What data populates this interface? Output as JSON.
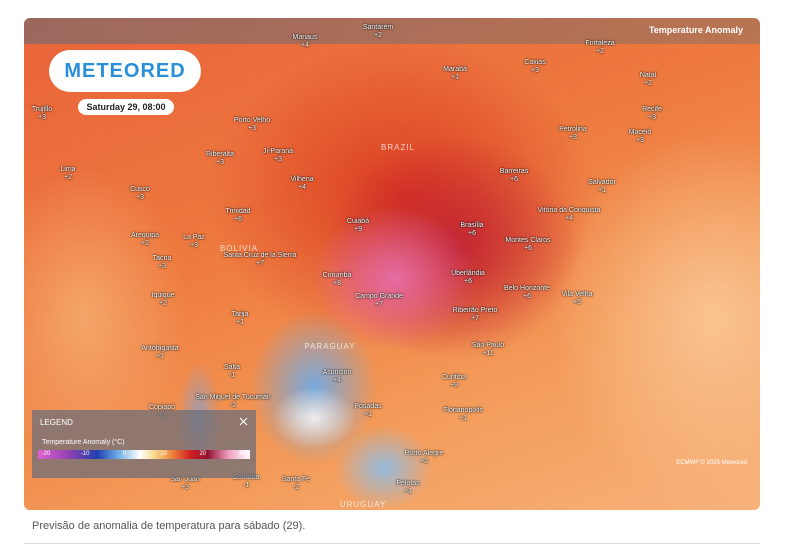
{
  "header": {
    "title": "Temperature Anomaly"
  },
  "logo": "METEORED",
  "date": "Saturday 29, 08:00",
  "countries": [
    "BRAZIL",
    "BOLIVIA",
    "PARAGUAY",
    "URUGUAY"
  ],
  "cities": [
    {
      "name": "Manaus",
      "anomaly": "+4"
    },
    {
      "name": "Santarém",
      "anomaly": "+2"
    },
    {
      "name": "Fortaleza",
      "anomaly": "+2"
    },
    {
      "name": "Marabá",
      "anomaly": "+1"
    },
    {
      "name": "Caxias",
      "anomaly": "+3"
    },
    {
      "name": "Natal",
      "anomaly": "+2"
    },
    {
      "name": "Recife",
      "anomaly": "+3"
    },
    {
      "name": "Maceió",
      "anomaly": "+3"
    },
    {
      "name": "Trujillo",
      "anomaly": "+3"
    },
    {
      "name": "Porto Velho",
      "anomaly": "+3"
    },
    {
      "name": "Riberalta",
      "anomaly": "+3"
    },
    {
      "name": "Ji-Paraná",
      "anomaly": "+3"
    },
    {
      "name": "Petrolina",
      "anomaly": "+3"
    },
    {
      "name": "Lima",
      "anomaly": "+2"
    },
    {
      "name": "Vilhena",
      "anomaly": "+4"
    },
    {
      "name": "Barreiras",
      "anomaly": "+6"
    },
    {
      "name": "Salvador",
      "anomaly": "+1"
    },
    {
      "name": "Cusco",
      "anomaly": "+3"
    },
    {
      "name": "Trinidad",
      "anomaly": "+6"
    },
    {
      "name": "Cuiabá",
      "anomaly": "+9"
    },
    {
      "name": "Brasília",
      "anomaly": "+6"
    },
    {
      "name": "Vitória da Conquista",
      "anomaly": "+4"
    },
    {
      "name": "Arequipa",
      "anomaly": "+2"
    },
    {
      "name": "La Paz",
      "anomaly": "+3"
    },
    {
      "name": "Montes Claros",
      "anomaly": "+6"
    },
    {
      "name": "Tacna",
      "anomaly": "+3"
    },
    {
      "name": "Santa Cruz de la Sierra",
      "anomaly": "+7"
    },
    {
      "name": "Corumbá",
      "anomaly": "+8"
    },
    {
      "name": "Uberlândia",
      "anomaly": "+6"
    },
    {
      "name": "Belo Horizonte",
      "anomaly": "+6"
    },
    {
      "name": "Iquique",
      "anomaly": "+2"
    },
    {
      "name": "Campo Grande",
      "anomaly": "+7"
    },
    {
      "name": "Vila Velha",
      "anomaly": "+5"
    },
    {
      "name": "Tarija",
      "anomaly": "+1"
    },
    {
      "name": "Ribeirão Preto",
      "anomaly": "+7"
    },
    {
      "name": "Antofagasta",
      "anomaly": "+1"
    },
    {
      "name": "São Paulo",
      "anomaly": "+11"
    },
    {
      "name": "Salta",
      "anomaly": "-1"
    },
    {
      "name": "Asunción",
      "anomaly": "+4"
    },
    {
      "name": "Curitiba",
      "anomaly": "+9"
    },
    {
      "name": "San Miguel de Tucumán",
      "anomaly": "-2"
    },
    {
      "name": "Copiapó",
      "anomaly": "+1"
    },
    {
      "name": "Posadas",
      "anomaly": "+1"
    },
    {
      "name": "Florianópolis",
      "anomaly": "+1"
    },
    {
      "name": "Porto Alegre",
      "anomaly": "+2"
    },
    {
      "name": "Córdoba",
      "anomaly": "-1"
    },
    {
      "name": "San Juan",
      "anomaly": "+3"
    },
    {
      "name": "Santa Fe",
      "anomaly": "-2"
    },
    {
      "name": "Pelotas",
      "anomaly": "+1"
    }
  ],
  "legend": {
    "title": "LEGEND",
    "subtitle": "Temperature Anomaly (°C)",
    "ticks": [
      -20,
      -10,
      0,
      10,
      20,
      30
    ]
  },
  "credit": "ECMWF © 2025 Meteored",
  "caption": "Previsão de anomalia de temperatura para sábado (29)."
}
